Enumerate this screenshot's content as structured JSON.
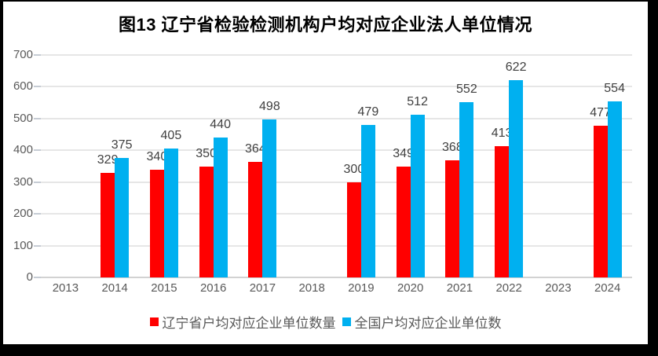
{
  "chart": {
    "title": "图13 辽宁省检验检测机构户均对应企业法人单位情况"
  },
  "colors": {
    "liaoning_red": "#FF0000",
    "national_blue": "#00B0F0",
    "gridline": "#E6E6E6",
    "axis_text": "#595959",
    "data_label_text": "#404040",
    "frame_border": "#000000"
  },
  "legend": {
    "items": [
      {
        "label": "辽宁省户均对应企业单位数量",
        "color": "#FF0000"
      },
      {
        "label": "全国户均对应企业单位数",
        "color": "#00B0F0"
      }
    ]
  },
  "chart_data": {
    "type": "bar",
    "title": "图13 辽宁省检验检测机构户均对应企业法人单位情况",
    "categories": [
      "2013",
      "2014",
      "2015",
      "2016",
      "2017",
      "2018",
      "2019",
      "2020",
      "2021",
      "2022",
      "2023",
      "2024"
    ],
    "series": [
      {
        "name": "辽宁省户均对应企业单位数量",
        "color": "#FF0000",
        "values": [
          null,
          329,
          340,
          350,
          364,
          null,
          300,
          349,
          368,
          413,
          null,
          477
        ]
      },
      {
        "name": "全国户均对应企业单位数",
        "color": "#00B0F0",
        "values": [
          null,
          375,
          405,
          440,
          498,
          null,
          479,
          512,
          552,
          622,
          null,
          554
        ]
      }
    ],
    "xlabel": "",
    "ylabel": "",
    "ylim": [
      0,
      700
    ],
    "yticks": [
      0,
      100,
      200,
      300,
      400,
      500,
      600,
      700
    ],
    "grid": true,
    "legend_position": "bottom",
    "data_labels": true
  }
}
